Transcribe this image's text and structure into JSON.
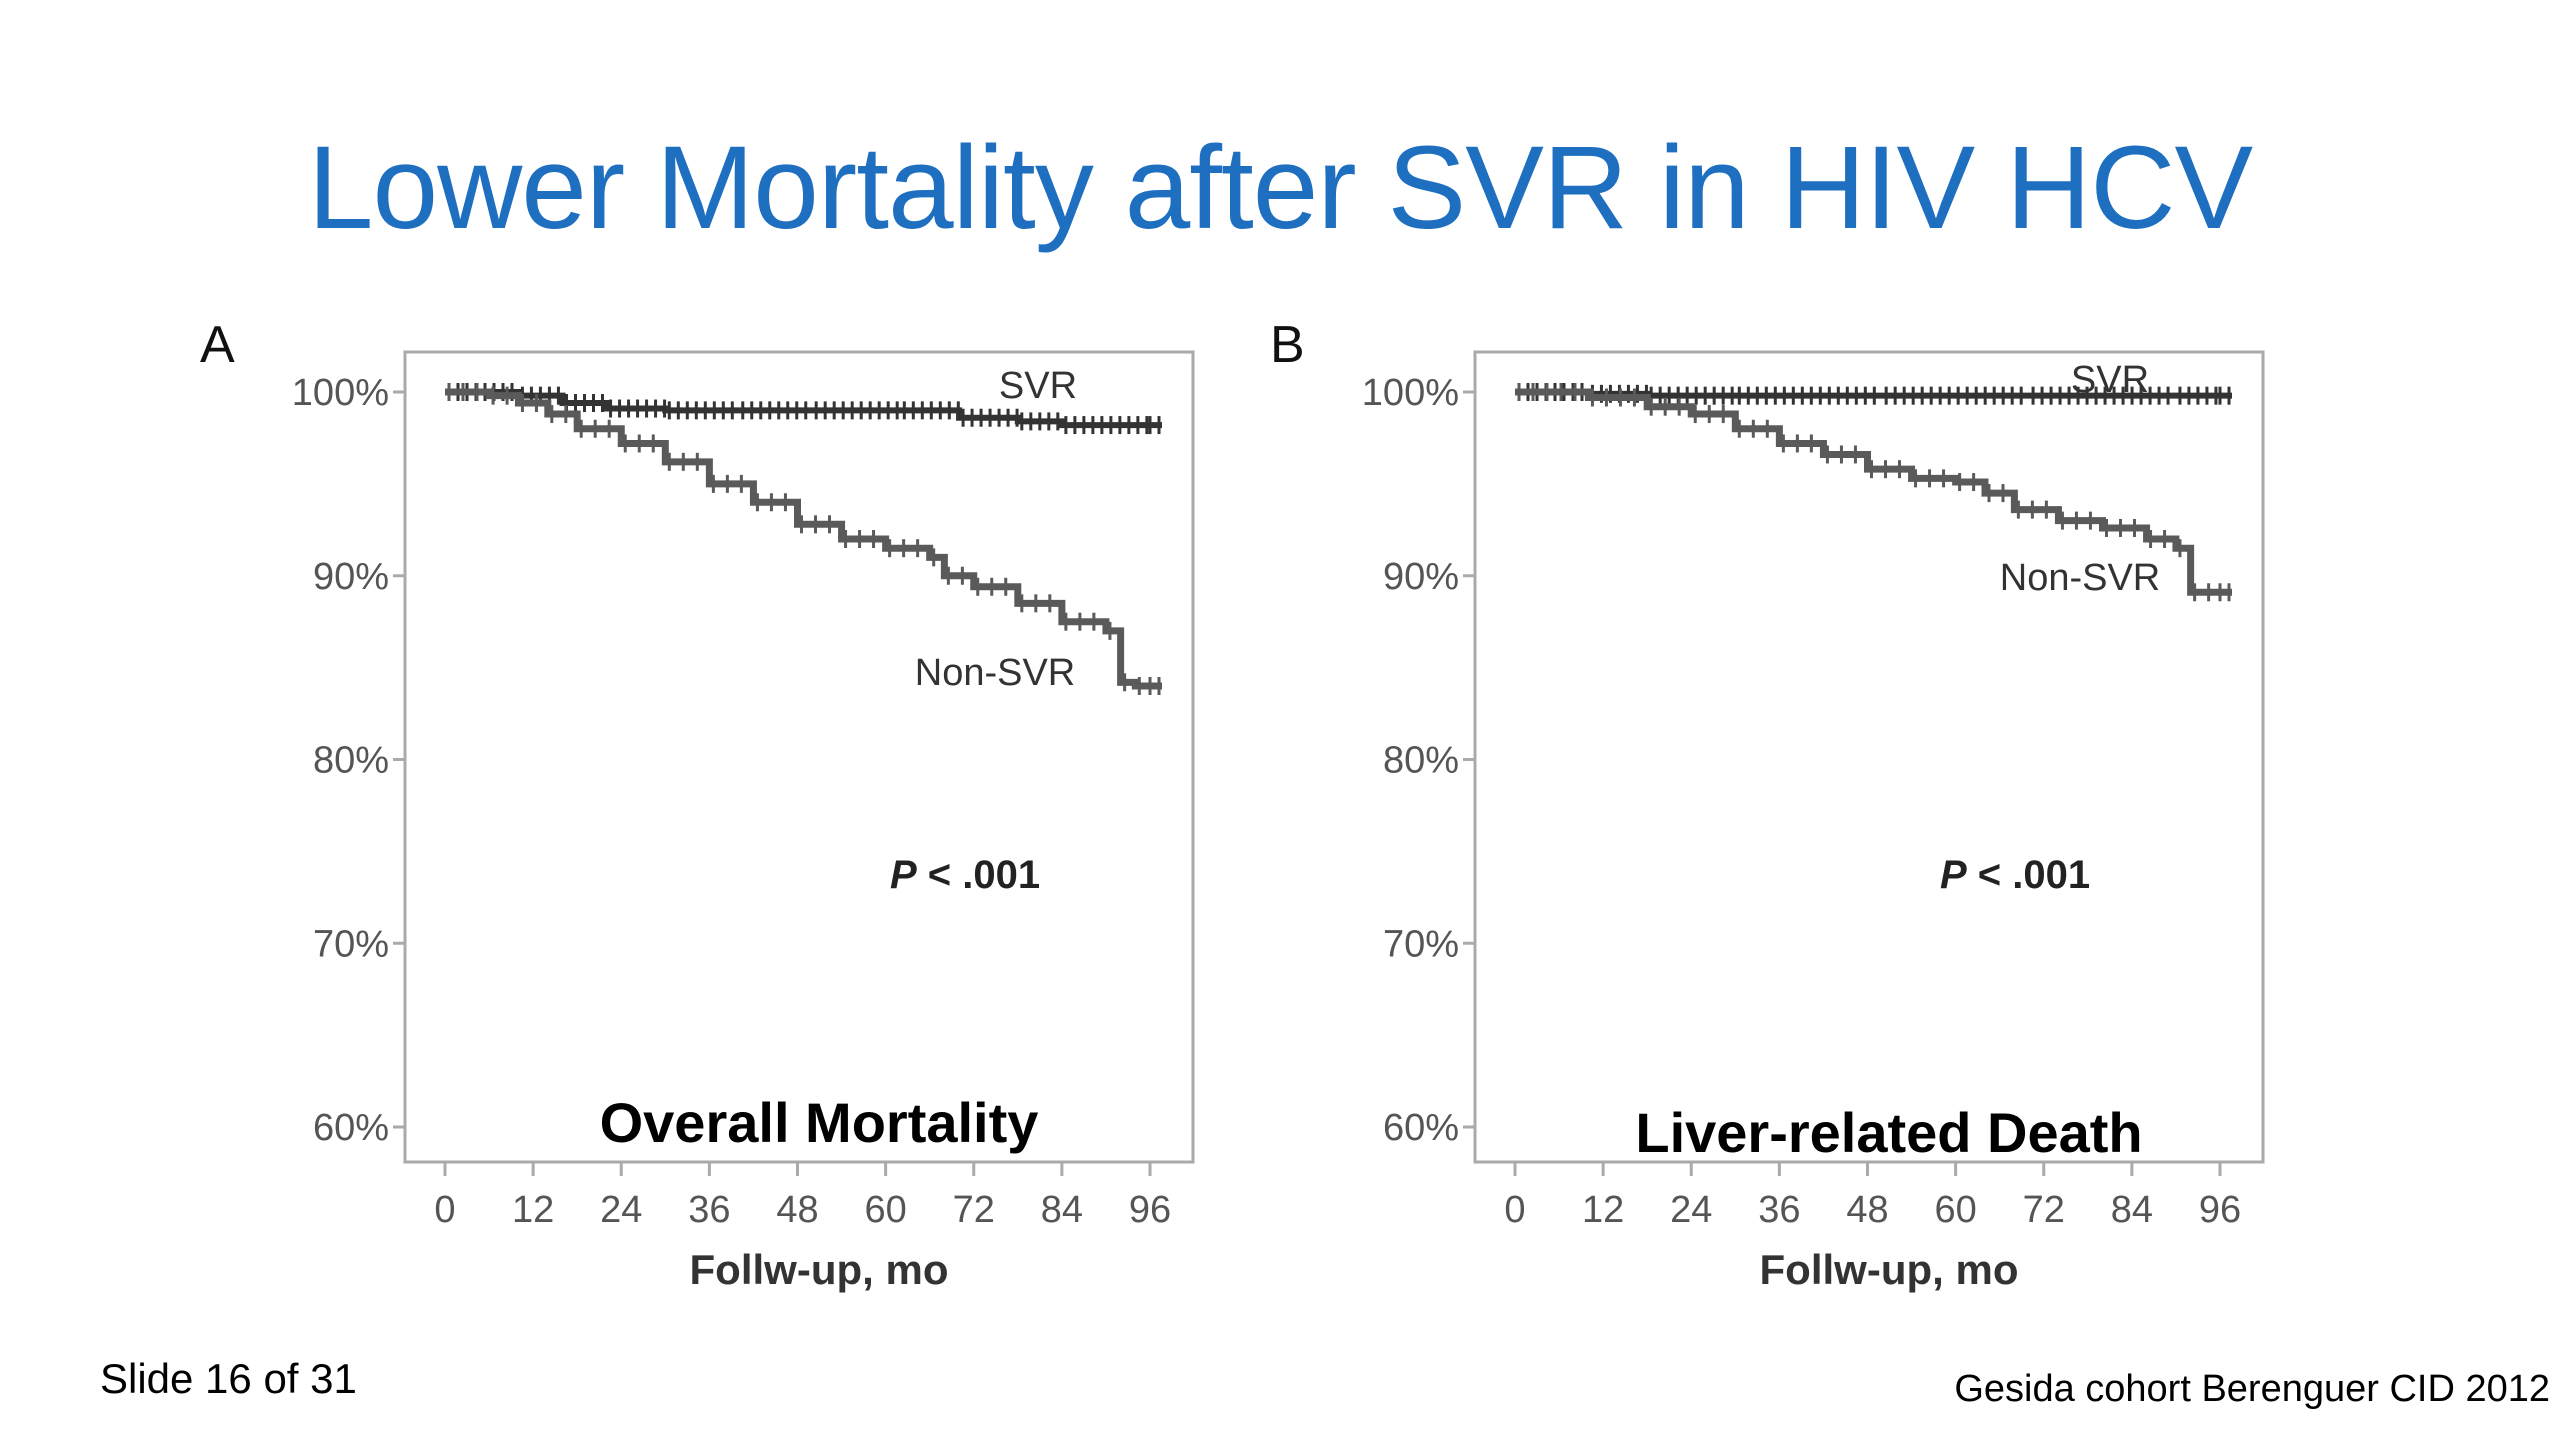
{
  "slide": {
    "title": "Lower Mortality after SVR in HIV HCV",
    "slide_number": "Slide 16 of 31",
    "citation": "Gesida cohort Berenguer CID 2012"
  },
  "chart_data": [
    {
      "type": "line",
      "panel_label": "A",
      "caption": "Overall Mortality",
      "xlabel": "Follw-up, mo",
      "ylabel": "",
      "xlim": [
        0,
        96
      ],
      "ylim": [
        60,
        100
      ],
      "x_ticks": [
        0,
        12,
        24,
        36,
        48,
        60,
        72,
        84,
        96
      ],
      "y_ticks": [
        60,
        70,
        80,
        90,
        100
      ],
      "y_tick_labels": [
        "60%",
        "70%",
        "80%",
        "90%",
        "100%"
      ],
      "annotation": {
        "p_symbol": "P",
        "p_text": " < .001"
      },
      "series": [
        {
          "name": "SVR",
          "color": "#333333",
          "x": [
            0,
            10,
            16,
            22,
            30,
            40,
            50,
            62,
            70,
            78,
            84,
            96
          ],
          "y": [
            100,
            99.8,
            99.4,
            99.1,
            99.0,
            99.0,
            99.0,
            99.0,
            98.6,
            98.4,
            98.2,
            98.2
          ]
        },
        {
          "name": "Non-SVR",
          "color": "#5a5a5a",
          "x": [
            0,
            6,
            10,
            14,
            18,
            24,
            30,
            36,
            42,
            48,
            54,
            60,
            66,
            68,
            72,
            78,
            84,
            90,
            92,
            94,
            96
          ],
          "y": [
            100,
            99.8,
            99.4,
            98.8,
            98.0,
            97.2,
            96.2,
            95.0,
            94.0,
            92.8,
            92.0,
            91.5,
            91.0,
            90.0,
            89.4,
            88.5,
            87.5,
            87.0,
            84.2,
            84.0,
            84.0
          ]
        }
      ]
    },
    {
      "type": "line",
      "panel_label": "B",
      "caption": "Liver-related Death",
      "xlabel": "Follw-up, mo",
      "ylabel": "",
      "xlim": [
        0,
        96
      ],
      "ylim": [
        60,
        100
      ],
      "x_ticks": [
        0,
        12,
        24,
        36,
        48,
        60,
        72,
        84,
        96
      ],
      "y_ticks": [
        60,
        70,
        80,
        90,
        100
      ],
      "y_tick_labels": [
        "60%",
        "70%",
        "80%",
        "90%",
        "100%"
      ],
      "annotation": {
        "p_symbol": "P",
        "p_text": " < .001"
      },
      "series": [
        {
          "name": "SVR",
          "color": "#333333",
          "x": [
            0,
            10,
            18,
            30,
            50,
            70,
            90,
            96
          ],
          "y": [
            100,
            99.9,
            99.8,
            99.8,
            99.8,
            99.8,
            99.8,
            99.8
          ]
        },
        {
          "name": "Non-SVR",
          "color": "#5a5a5a",
          "x": [
            0,
            10,
            18,
            24,
            30,
            36,
            42,
            48,
            54,
            60,
            64,
            68,
            74,
            80,
            86,
            90,
            92,
            96
          ],
          "y": [
            100,
            99.7,
            99.2,
            98.8,
            98.0,
            97.2,
            96.6,
            95.8,
            95.3,
            95.1,
            94.5,
            93.6,
            93.0,
            92.6,
            92.0,
            91.5,
            89.1,
            89.1
          ]
        }
      ]
    }
  ]
}
